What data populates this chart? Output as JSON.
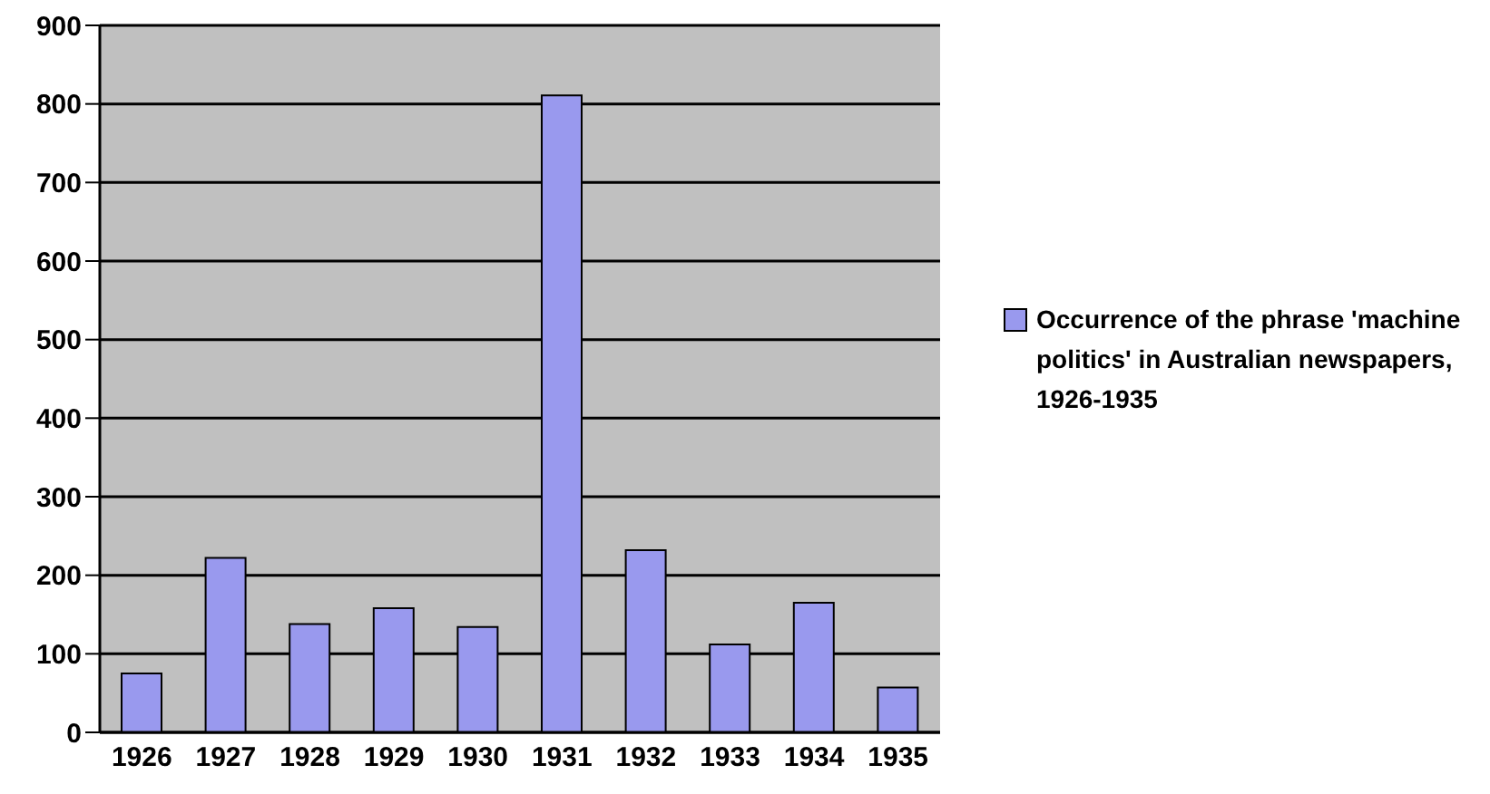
{
  "chart_data": {
    "type": "bar",
    "categories": [
      "1926",
      "1927",
      "1928",
      "1929",
      "1930",
      "1931",
      "1932",
      "1933",
      "1934",
      "1935"
    ],
    "series": [
      {
        "name": "Occurrence of the phrase 'machine politics' in Australian newspapers, 1926-1935",
        "color": "#9999ee",
        "values": [
          75,
          222,
          138,
          158,
          134,
          811,
          232,
          112,
          165,
          57
        ]
      }
    ],
    "ylim": [
      0,
      900
    ],
    "yticks": [
      0,
      100,
      200,
      300,
      400,
      500,
      600,
      700,
      800,
      900
    ],
    "grid": "y",
    "legend": "right"
  }
}
